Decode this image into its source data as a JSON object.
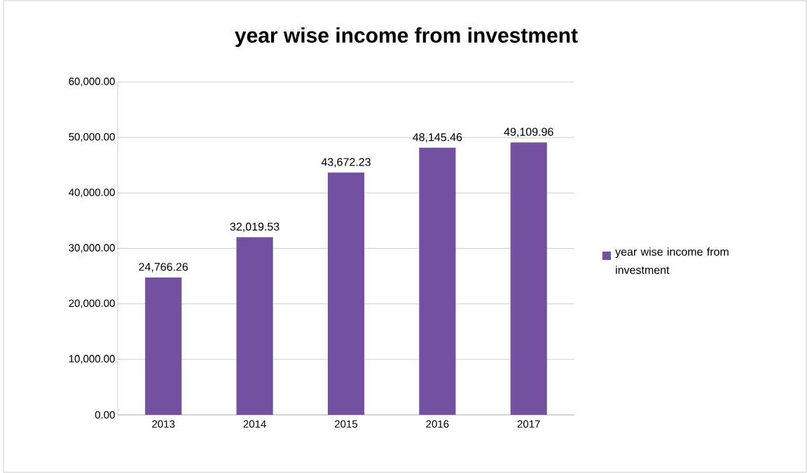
{
  "chart_data": {
    "type": "bar",
    "title": "year wise income from investment",
    "categories": [
      "2013",
      "2014",
      "2015",
      "2016",
      "2017"
    ],
    "series": [
      {
        "name": "year wise income from investment",
        "color": "#7451a0",
        "values": [
          24766.26,
          32019.53,
          43672.23,
          48145.46,
          49109.96
        ]
      }
    ],
    "value_labels": [
      "24,766.26",
      "32,019.53",
      "43,672.23",
      "48,145.46",
      "49,109.96"
    ],
    "ylim": [
      0,
      60000
    ],
    "yticks": [
      {
        "value": 0,
        "label": "0.00"
      },
      {
        "value": 10000,
        "label": "10,000.00"
      },
      {
        "value": 20000,
        "label": "20,000.00"
      },
      {
        "value": 30000,
        "label": "30,000.00"
      },
      {
        "value": 40000,
        "label": "40,000.00"
      },
      {
        "value": 50000,
        "label": "50,000.00"
      },
      {
        "value": 60000,
        "label": "60,000.00"
      }
    ],
    "grid": "y",
    "legend": "right"
  }
}
